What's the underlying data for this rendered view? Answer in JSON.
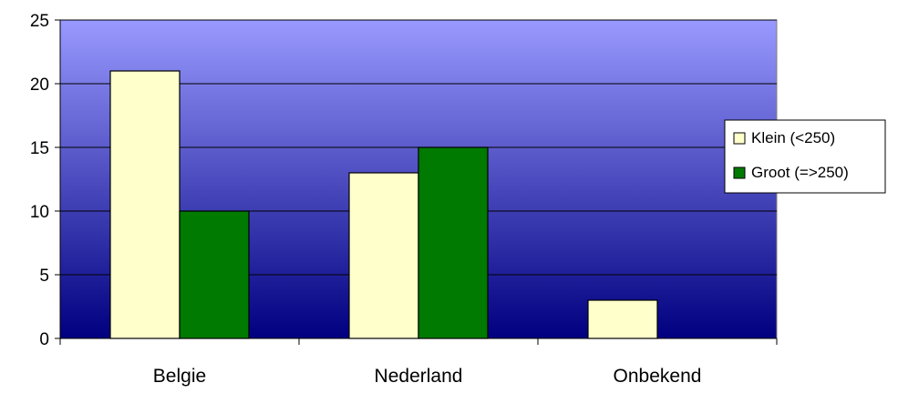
{
  "chart_data": {
    "type": "bar",
    "title": "",
    "xlabel": "",
    "ylabel": "",
    "categories": [
      "Belgie",
      "Nederland",
      "Onbekend"
    ],
    "series": [
      {
        "name": "Klein (<250)",
        "values": [
          21,
          13,
          3
        ],
        "color": "#FFFFCC"
      },
      {
        "name": "Groot (=>250)",
        "values": [
          10,
          15,
          0
        ],
        "color": "#007A00"
      }
    ],
    "ylim": [
      0,
      25
    ],
    "yticks": [
      0,
      5,
      10,
      15,
      20,
      25
    ],
    "grid": true,
    "legend_position": "right",
    "plot_gradient": {
      "top": "#9999FF",
      "bottom": "#000080"
    }
  }
}
